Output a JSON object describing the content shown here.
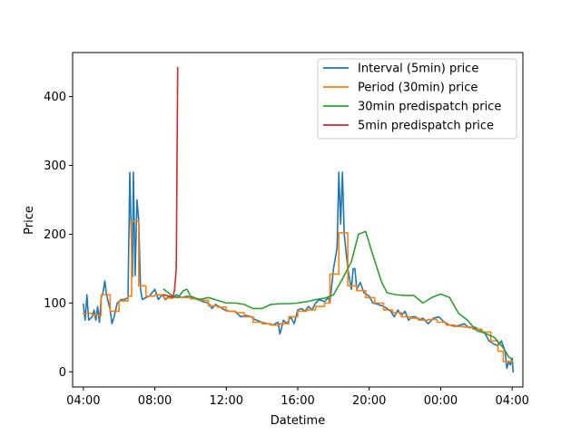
{
  "chart_data": {
    "type": "line",
    "title": "",
    "xlabel": "Datetime",
    "ylabel": "Price",
    "x_unit": "hours from 04:00 (first day) to 04:00 (next day)",
    "xlim": [
      -0.6,
      24.6
    ],
    "ylim": [
      -22,
      464
    ],
    "x_ticks": [
      {
        "x": 0,
        "label": "04:00"
      },
      {
        "x": 4,
        "label": "08:00"
      },
      {
        "x": 8,
        "label": "12:00"
      },
      {
        "x": 12,
        "label": "16:00"
      },
      {
        "x": 16,
        "label": "20:00"
      },
      {
        "x": 20,
        "label": "00:00"
      },
      {
        "x": 24,
        "label": "04:00"
      }
    ],
    "y_ticks": [
      {
        "y": 0,
        "label": "0"
      },
      {
        "y": 100,
        "label": "100"
      },
      {
        "y": 200,
        "label": "200"
      },
      {
        "y": 300,
        "label": "300"
      },
      {
        "y": 400,
        "label": "400"
      }
    ],
    "grid": false,
    "legend_position": "top-right",
    "series": [
      {
        "name": "Interval (5min) price",
        "color": "#1f77b4",
        "points": [
          [
            0,
            98
          ],
          [
            0.1,
            75
          ],
          [
            0.2,
            112
          ],
          [
            0.3,
            75
          ],
          [
            0.5,
            80
          ],
          [
            0.6,
            90
          ],
          [
            0.7,
            75
          ],
          [
            0.8,
            95
          ],
          [
            0.9,
            72
          ],
          [
            1.0,
            108
          ],
          [
            1.1,
            115
          ],
          [
            1.2,
            132
          ],
          [
            1.3,
            112
          ],
          [
            1.5,
            90
          ],
          [
            1.6,
            70
          ],
          [
            1.7,
            78
          ],
          [
            1.9,
            100
          ],
          [
            2.1,
            105
          ],
          [
            2.3,
            105
          ],
          [
            2.5,
            108
          ],
          [
            2.6,
            290
          ],
          [
            2.7,
            180
          ],
          [
            2.75,
            138
          ],
          [
            2.8,
            290
          ],
          [
            2.9,
            140
          ],
          [
            3.0,
            250
          ],
          [
            3.1,
            220
          ],
          [
            3.2,
            120
          ],
          [
            3.3,
            105
          ],
          [
            3.5,
            108
          ],
          [
            3.7,
            110
          ],
          [
            4.0,
            120
          ],
          [
            4.2,
            105
          ],
          [
            4.4,
            112
          ],
          [
            4.6,
            105
          ],
          [
            4.8,
            110
          ],
          [
            5.0,
            108
          ],
          [
            5.2,
            112
          ],
          [
            5.5,
            108
          ],
          [
            5.8,
            110
          ],
          [
            6.1,
            108
          ],
          [
            6.4,
            105
          ],
          [
            6.7,
            102
          ],
          [
            7.0,
            100
          ],
          [
            7.2,
            92
          ],
          [
            7.4,
            98
          ],
          [
            7.6,
            95
          ],
          [
            7.9,
            90
          ],
          [
            8.2,
            88
          ],
          [
            8.5,
            88
          ],
          [
            8.8,
            80
          ],
          [
            9.1,
            82
          ],
          [
            9.4,
            80
          ],
          [
            9.6,
            76
          ],
          [
            10.0,
            72
          ],
          [
            10.3,
            70
          ],
          [
            10.6,
            68
          ],
          [
            10.9,
            72
          ],
          [
            11.0,
            55
          ],
          [
            11.2,
            75
          ],
          [
            11.4,
            70
          ],
          [
            11.6,
            80
          ],
          [
            11.8,
            70
          ],
          [
            12.0,
            90
          ],
          [
            12.2,
            92
          ],
          [
            12.4,
            88
          ],
          [
            12.6,
            95
          ],
          [
            12.8,
            90
          ],
          [
            13.0,
            100
          ],
          [
            13.2,
            105
          ],
          [
            13.5,
            102
          ],
          [
            13.7,
            108
          ],
          [
            13.8,
            100
          ],
          [
            14.0,
            150
          ],
          [
            14.2,
            180
          ],
          [
            14.3,
            290
          ],
          [
            14.4,
            215
          ],
          [
            14.5,
            290
          ],
          [
            14.6,
            200
          ],
          [
            14.8,
            150
          ],
          [
            15.0,
            120
          ],
          [
            15.1,
            150
          ],
          [
            15.2,
            150
          ],
          [
            15.3,
            120
          ],
          [
            15.5,
            130
          ],
          [
            15.7,
            115
          ],
          [
            16.0,
            110
          ],
          [
            16.2,
            100
          ],
          [
            16.5,
            98
          ],
          [
            16.8,
            95
          ],
          [
            17.0,
            92
          ],
          [
            17.2,
            88
          ],
          [
            17.4,
            80
          ],
          [
            17.6,
            90
          ],
          [
            17.8,
            82
          ],
          [
            18.0,
            88
          ],
          [
            18.2,
            75
          ],
          [
            18.4,
            80
          ],
          [
            18.6,
            80
          ],
          [
            18.8,
            75
          ],
          [
            19.0,
            78
          ],
          [
            19.3,
            70
          ],
          [
            19.6,
            78
          ],
          [
            19.9,
            80
          ],
          [
            20.2,
            72
          ],
          [
            20.5,
            68
          ],
          [
            20.8,
            66
          ],
          [
            21.1,
            68
          ],
          [
            21.3,
            70
          ],
          [
            21.6,
            64
          ],
          [
            21.9,
            65
          ],
          [
            22.1,
            62
          ],
          [
            22.3,
            60
          ],
          [
            22.5,
            55
          ],
          [
            22.7,
            45
          ],
          [
            23.0,
            40
          ],
          [
            23.2,
            38
          ],
          [
            23.4,
            45
          ],
          [
            23.6,
            30
          ],
          [
            23.7,
            5
          ],
          [
            23.8,
            15
          ],
          [
            23.9,
            10
          ],
          [
            24.0,
            20
          ],
          [
            24.05,
            0
          ]
        ]
      },
      {
        "name": "Period (30min) price",
        "color": "#ff7f0e",
        "points": [
          [
            0,
            85
          ],
          [
            0.5,
            85
          ],
          [
            0.5,
            82
          ],
          [
            1.0,
            82
          ],
          [
            1.0,
            112
          ],
          [
            1.5,
            112
          ],
          [
            1.5,
            88
          ],
          [
            2.0,
            88
          ],
          [
            2.0,
            103
          ],
          [
            2.5,
            103
          ],
          [
            2.5,
            110
          ],
          [
            2.7,
            110
          ],
          [
            2.7,
            219
          ],
          [
            3.1,
            219
          ],
          [
            3.1,
            125
          ],
          [
            3.5,
            125
          ],
          [
            3.5,
            110
          ],
          [
            4.0,
            110
          ],
          [
            4.0,
            112
          ],
          [
            4.5,
            112
          ],
          [
            4.5,
            107
          ],
          [
            5.0,
            107
          ],
          [
            5.0,
            108
          ],
          [
            5.5,
            108
          ],
          [
            5.5,
            108
          ],
          [
            6.0,
            108
          ],
          [
            6.0,
            106
          ],
          [
            6.5,
            106
          ],
          [
            6.5,
            104
          ],
          [
            7.0,
            104
          ],
          [
            7.0,
            96
          ],
          [
            7.5,
            96
          ],
          [
            7.5,
            94
          ],
          [
            8.0,
            94
          ],
          [
            8.0,
            88
          ],
          [
            8.5,
            88
          ],
          [
            8.5,
            86
          ],
          [
            9.0,
            86
          ],
          [
            9.0,
            80
          ],
          [
            9.5,
            80
          ],
          [
            9.5,
            72
          ],
          [
            10.0,
            72
          ],
          [
            10.0,
            70
          ],
          [
            10.5,
            70
          ],
          [
            10.5,
            68
          ],
          [
            11.0,
            68
          ],
          [
            11.0,
            70
          ],
          [
            11.5,
            70
          ],
          [
            11.5,
            80
          ],
          [
            12.0,
            80
          ],
          [
            12.0,
            88
          ],
          [
            12.5,
            88
          ],
          [
            12.5,
            90
          ],
          [
            13.0,
            90
          ],
          [
            13.0,
            95
          ],
          [
            13.5,
            95
          ],
          [
            13.5,
            100
          ],
          [
            13.8,
            100
          ],
          [
            13.8,
            142
          ],
          [
            14.3,
            142
          ],
          [
            14.3,
            202
          ],
          [
            14.8,
            202
          ],
          [
            14.8,
            125
          ],
          [
            15.3,
            125
          ],
          [
            15.3,
            118
          ],
          [
            15.8,
            118
          ],
          [
            15.8,
            108
          ],
          [
            16.3,
            108
          ],
          [
            16.3,
            100
          ],
          [
            16.8,
            100
          ],
          [
            16.8,
            90
          ],
          [
            17.3,
            90
          ],
          [
            17.3,
            86
          ],
          [
            17.8,
            86
          ],
          [
            17.8,
            80
          ],
          [
            18.3,
            80
          ],
          [
            18.3,
            78
          ],
          [
            18.8,
            78
          ],
          [
            18.8,
            75
          ],
          [
            19.3,
            75
          ],
          [
            19.3,
            76
          ],
          [
            19.8,
            76
          ],
          [
            19.8,
            72
          ],
          [
            20.3,
            72
          ],
          [
            20.3,
            68
          ],
          [
            20.8,
            68
          ],
          [
            20.8,
            66
          ],
          [
            21.3,
            66
          ],
          [
            21.3,
            65
          ],
          [
            21.8,
            65
          ],
          [
            21.8,
            62
          ],
          [
            22.3,
            62
          ],
          [
            22.3,
            58
          ],
          [
            22.8,
            58
          ],
          [
            22.8,
            45
          ],
          [
            23.2,
            45
          ],
          [
            23.2,
            30
          ],
          [
            23.5,
            30
          ],
          [
            23.5,
            15
          ],
          [
            24.0,
            15
          ]
        ]
      },
      {
        "name": "30min predispatch price",
        "color": "#2ca02c",
        "points": [
          [
            4.5,
            120
          ],
          [
            5.0,
            110
          ],
          [
            5.3,
            108
          ],
          [
            5.6,
            118
          ],
          [
            5.8,
            120
          ],
          [
            6.0,
            110
          ],
          [
            6.5,
            105
          ],
          [
            7.0,
            108
          ],
          [
            7.5,
            104
          ],
          [
            8.0,
            100
          ],
          [
            8.5,
            100
          ],
          [
            9.0,
            98
          ],
          [
            9.5,
            92
          ],
          [
            10.0,
            92
          ],
          [
            10.5,
            98
          ],
          [
            11.0,
            99
          ],
          [
            11.5,
            99
          ],
          [
            12.0,
            100
          ],
          [
            12.5,
            102
          ],
          [
            13.0,
            105
          ],
          [
            13.5,
            107
          ],
          [
            14.0,
            112
          ],
          [
            14.5,
            135
          ],
          [
            15.0,
            160
          ],
          [
            15.4,
            200
          ],
          [
            15.8,
            204
          ],
          [
            16.2,
            170
          ],
          [
            16.7,
            130
          ],
          [
            17.0,
            115
          ],
          [
            17.5,
            112
          ],
          [
            18.0,
            111
          ],
          [
            18.5,
            111
          ],
          [
            19.0,
            100
          ],
          [
            19.5,
            108
          ],
          [
            20.0,
            113
          ],
          [
            20.5,
            108
          ],
          [
            21.0,
            85
          ],
          [
            21.5,
            75
          ],
          [
            22.0,
            60
          ],
          [
            22.5,
            56
          ],
          [
            23.0,
            50
          ],
          [
            23.5,
            35
          ],
          [
            23.8,
            22
          ],
          [
            24.0,
            18
          ]
        ]
      },
      {
        "name": "5min predispatch price",
        "color": "#d62728",
        "points": [
          [
            4.5,
            112
          ],
          [
            4.8,
            110
          ],
          [
            5.0,
            108
          ],
          [
            5.1,
            118
          ],
          [
            5.2,
            150
          ],
          [
            5.28,
            442
          ]
        ]
      }
    ]
  }
}
